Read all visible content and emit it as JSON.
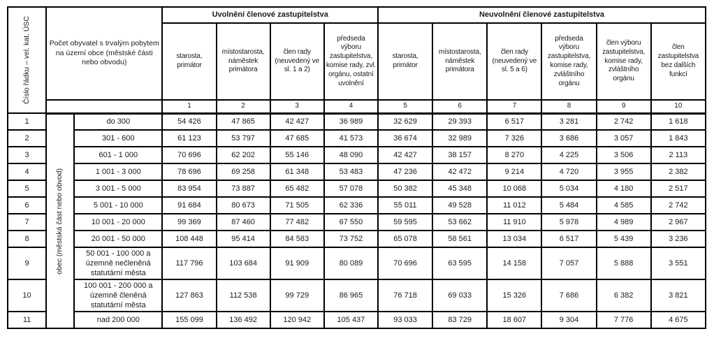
{
  "colors": {
    "border": "#000000",
    "text": "#1a1a1a",
    "page_bg": "#ffffff"
  },
  "table": {
    "corner_header": "Číslo řádku – vel. kat. ÚSC",
    "population_header": "Počet obyvatel s trvalým pobytem na území obce (městské části nebo obvodu)",
    "row_group_label": "obec (městská část nebo obvod)",
    "sections": [
      {
        "label": "Uvolnění členové zastupitelstva"
      },
      {
        "label": "Neuvolnění členové zastupitelstva"
      }
    ],
    "columns": [
      {
        "num": "1",
        "label": "starosta, primátor"
      },
      {
        "num": "2",
        "label": "místostarosta, náměstek primátora"
      },
      {
        "num": "3",
        "label": "člen rady (neuvedený ve sl. 1 a 2)"
      },
      {
        "num": "4",
        "label": "předseda výboru zastupitelstva, komise rady, zvl. orgánu, ostatní uvolnění"
      },
      {
        "num": "5",
        "label": "starosta, primátor"
      },
      {
        "num": "6",
        "label": "místostarosta, náměstek primátora"
      },
      {
        "num": "7",
        "label": "člen rady (neuvedený ve sl. 5 a 6)"
      },
      {
        "num": "8",
        "label": "předseda výboru zastupitelstva, komise rady, zvláštního orgánu"
      },
      {
        "num": "9",
        "label": "člen výboru zastupitelstva, komise rady, zvláštního orgánu"
      },
      {
        "num": "10",
        "label": "člen zastupitelstva bez dalších funkcí"
      }
    ],
    "rows": [
      {
        "num": "1",
        "category": "do 300",
        "values": [
          "54 426",
          "47 865",
          "42 427",
          "36 989",
          "32 629",
          "29 393",
          "6 517",
          "3 281",
          "2 742",
          "1 618"
        ]
      },
      {
        "num": "2",
        "category": "301 - 600",
        "values": [
          "61 123",
          "53 797",
          "47 685",
          "41 573",
          "36 674",
          "32 989",
          "7 326",
          "3 686",
          "3 057",
          "1 843"
        ]
      },
      {
        "num": "3",
        "category": "601 - 1 000",
        "values": [
          "70 696",
          "62 202",
          "55 146",
          "48 090",
          "42 427",
          "38 157",
          "8 270",
          "4 225",
          "3 506",
          "2 113"
        ]
      },
      {
        "num": "4",
        "category": "1 001 - 3 000",
        "values": [
          "78 696",
          "69 258",
          "61 348",
          "53 483",
          "47 236",
          "42 472",
          "9 214",
          "4 720",
          "3 955",
          "2 382"
        ]
      },
      {
        "num": "5",
        "category": "3 001 - 5 000",
        "values": [
          "83 954",
          "73 887",
          "65 482",
          "57 078",
          "50 382",
          "45 348",
          "10 068",
          "5 034",
          "4 180",
          "2 517"
        ]
      },
      {
        "num": "6",
        "category": "5 001 - 10 000",
        "values": [
          "91 684",
          "80 673",
          "71 505",
          "62 336",
          "55 011",
          "49 528",
          "11 012",
          "5 484",
          "4 585",
          "2 742"
        ]
      },
      {
        "num": "7",
        "category": "10 001 - 20 000",
        "values": [
          "99 369",
          "87 460",
          "77 482",
          "67 550",
          "59 595",
          "53 662",
          "11 910",
          "5 978",
          "4 989",
          "2 967"
        ]
      },
      {
        "num": "8",
        "category": "20 001 - 50 000",
        "values": [
          "108 448",
          "95 414",
          "84 583",
          "73 752",
          "65 078",
          "58 561",
          "13 034",
          "6 517",
          "5 439",
          "3 236"
        ]
      },
      {
        "num": "9",
        "category": "50 001 - 100 000 a územně nečleněná statutární města",
        "values": [
          "117 796",
          "103 684",
          "91 909",
          "80 089",
          "70 696",
          "63 595",
          "14 158",
          "7 057",
          "5 888",
          "3 551"
        ]
      },
      {
        "num": "10",
        "category": "100 001 - 200 000 a územně členěná statutární města",
        "values": [
          "127 863",
          "112 538",
          "99 729",
          "86 965",
          "76 718",
          "69 033",
          "15 326",
          "7 686",
          "6 382",
          "3 821"
        ]
      },
      {
        "num": "11",
        "category": "nad 200 000",
        "values": [
          "155 099",
          "136 492",
          "120 942",
          "105 437",
          "93 033",
          "83 729",
          "18 607",
          "9 304",
          "7 776",
          "4 675"
        ]
      }
    ]
  }
}
